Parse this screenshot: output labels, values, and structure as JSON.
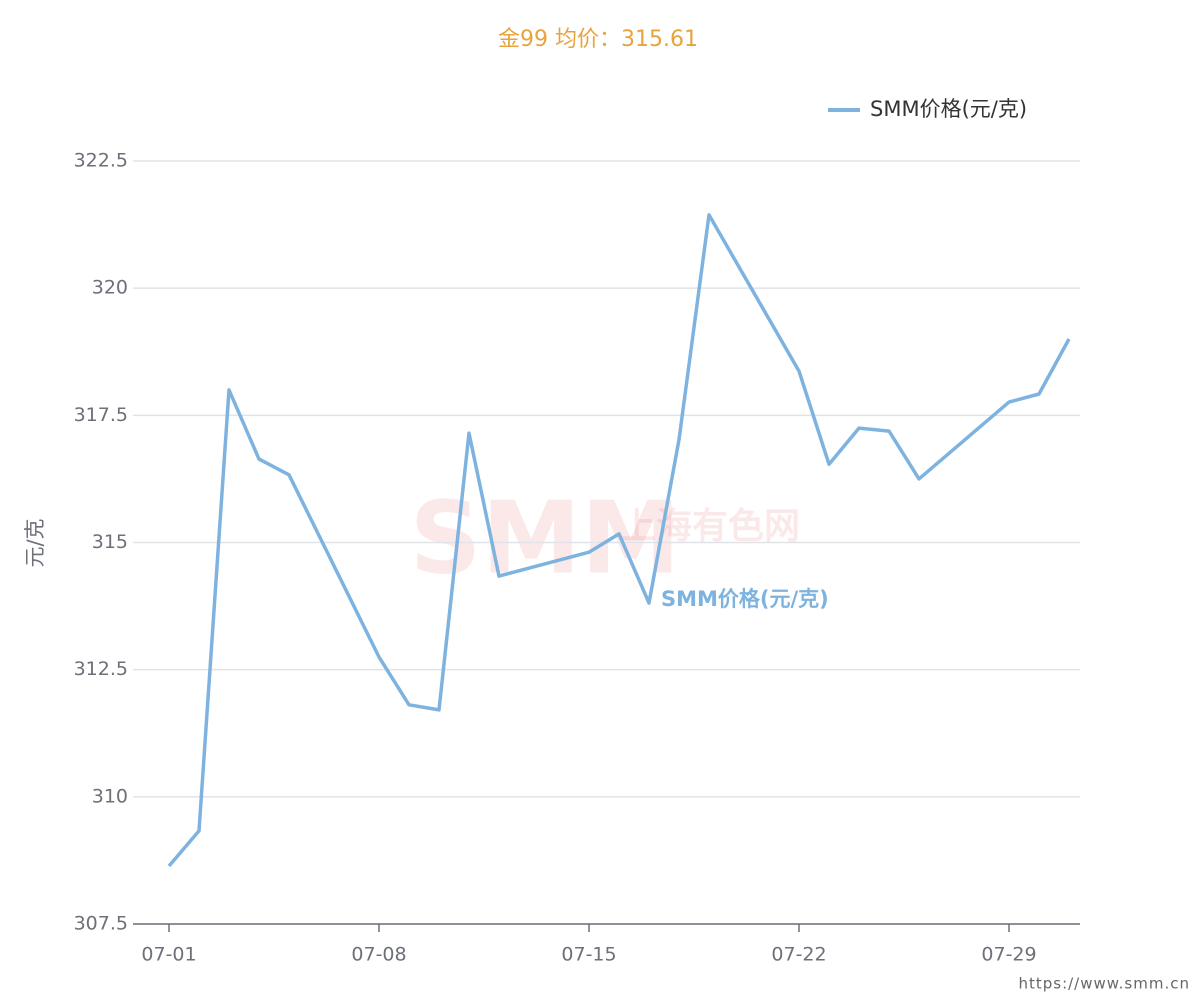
{
  "chart_data": {
    "type": "line",
    "title": "金99 均价：315.61",
    "ylabel": "元/克",
    "watermark": [
      "SMM",
      "上海有色网"
    ],
    "footer": "https://www.smm.cn",
    "x": [
      "07-01",
      "07-02",
      "07-03",
      "07-04",
      "07-05",
      "07-08",
      "07-09",
      "07-10",
      "07-11",
      "07-12",
      "07-15",
      "07-16",
      "07-17",
      "07-18",
      "07-19",
      "07-22",
      "07-23",
      "07-24",
      "07-25",
      "07-26",
      "07-29",
      "07-30",
      "07-31"
    ],
    "series": [
      {
        "name": "SMM价格(元/克)",
        "color": "#7eb3e0",
        "values": [
          308.64,
          309.33,
          318.0,
          316.64,
          316.33,
          312.75,
          311.81,
          311.71,
          317.15,
          314.34,
          314.81,
          315.17,
          313.81,
          317.02,
          321.44,
          318.37,
          316.54,
          317.25,
          317.19,
          316.25,
          317.76,
          317.92,
          319.0
        ]
      }
    ],
    "xlim": [
      "07-01",
      "07-31"
    ],
    "xticks": [
      "07-01",
      "07-08",
      "07-15",
      "07-22",
      "07-29"
    ],
    "ylim": [
      307.5,
      322.5
    ],
    "yticks": [
      307.5,
      310,
      312.5,
      315,
      317.5,
      320,
      322.5
    ],
    "grid": true,
    "legend": "top-right"
  }
}
